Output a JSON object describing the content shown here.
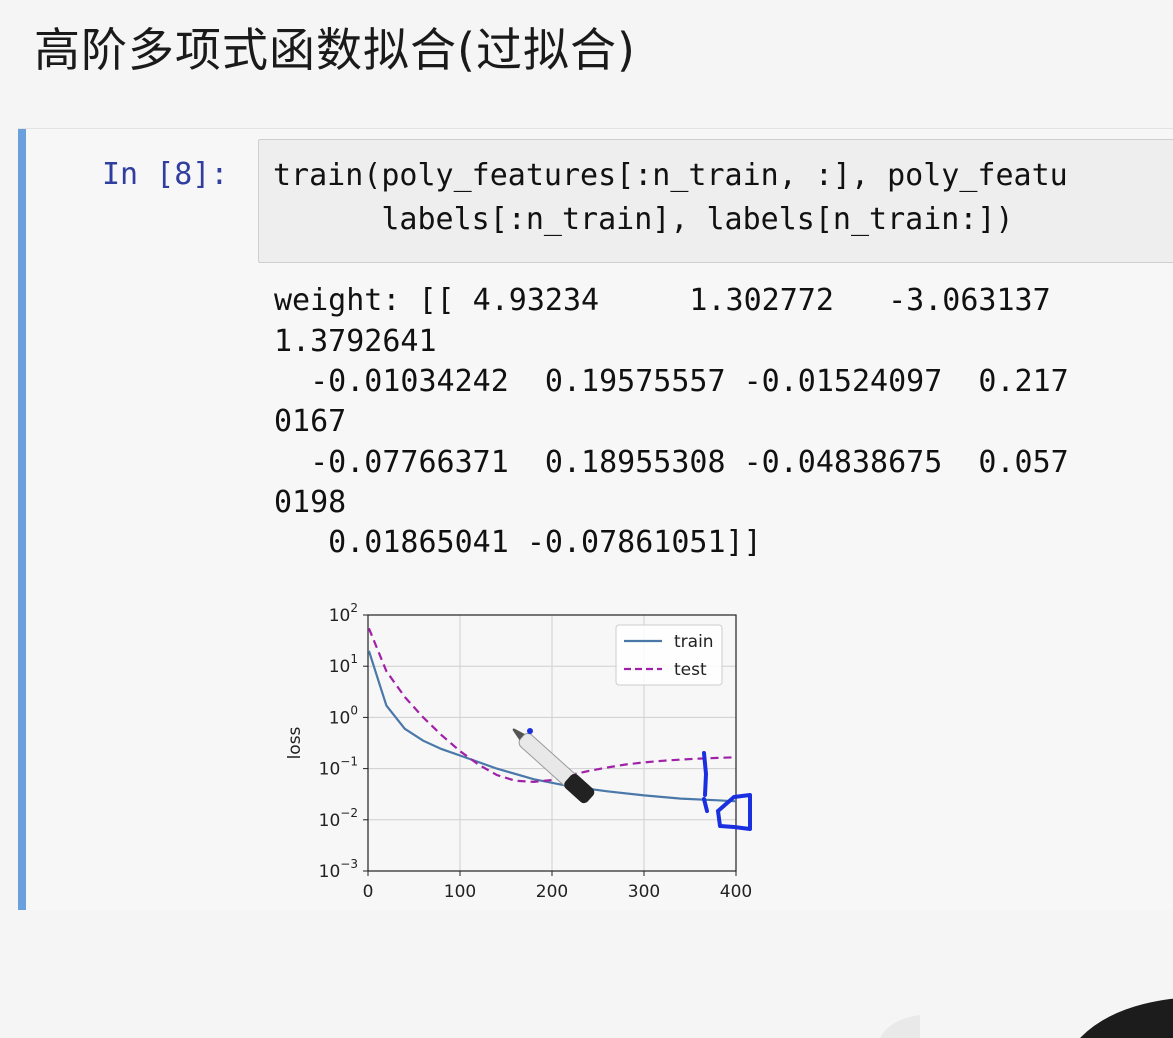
{
  "slide": {
    "title": "高阶多项式函数拟合(过拟合)"
  },
  "cell": {
    "prompt": "In [8]:",
    "code_lines": [
      "train(poly_features[:n_train, :], poly_featu",
      "      labels[:n_train], labels[n_train:])"
    ],
    "output_lines": [
      "weight: [[ 4.93234     1.302772   -3.063137",
      "1.3792641",
      "  -0.01034242  0.19575557 -0.01524097  0.217",
      "0167",
      "  -0.07766371  0.18955308 -0.04838675  0.057",
      "0198",
      "   0.01865041 -0.07861051]]"
    ]
  },
  "chart_data": {
    "type": "line",
    "ylabel": "loss",
    "xlabel": "",
    "title": "",
    "xlim": [
      0,
      400
    ],
    "ylim_log10": [
      -3,
      2
    ],
    "yscale": "log",
    "grid": true,
    "legend_position": "top-right",
    "x_ticks": [
      "0",
      "100",
      "200",
      "300",
      "400"
    ],
    "y_ticks": [
      {
        "base": "10",
        "exp": "2",
        "value": 100
      },
      {
        "base": "10",
        "exp": "1",
        "value": 10
      },
      {
        "base": "10",
        "exp": "0",
        "value": 1
      },
      {
        "base": "10",
        "exp": "−1",
        "value": 0.1
      },
      {
        "base": "10",
        "exp": "−2",
        "value": 0.01
      },
      {
        "base": "10",
        "exp": "−3",
        "value": 0.001
      }
    ],
    "series": [
      {
        "name": "train",
        "color": "#4a78a8",
        "dash": "solid",
        "x": [
          1,
          20,
          40,
          60,
          80,
          100,
          140,
          180,
          220,
          260,
          300,
          340,
          380,
          400
        ],
        "y": [
          20,
          1.7,
          0.6,
          0.35,
          0.24,
          0.18,
          0.1,
          0.062,
          0.045,
          0.036,
          0.03,
          0.026,
          0.024,
          0.023
        ]
      },
      {
        "name": "test",
        "color": "#a020a8",
        "dash": "dashed",
        "x": [
          1,
          20,
          40,
          60,
          80,
          100,
          120,
          140,
          160,
          180,
          200,
          220,
          240,
          260,
          280,
          300,
          320,
          340,
          360,
          380,
          400
        ],
        "y": [
          55,
          8,
          2.5,
          1.0,
          0.45,
          0.22,
          0.12,
          0.075,
          0.058,
          0.055,
          0.06,
          0.075,
          0.09,
          0.105,
          0.12,
          0.132,
          0.142,
          0.15,
          0.157,
          0.162,
          0.166
        ]
      }
    ]
  }
}
